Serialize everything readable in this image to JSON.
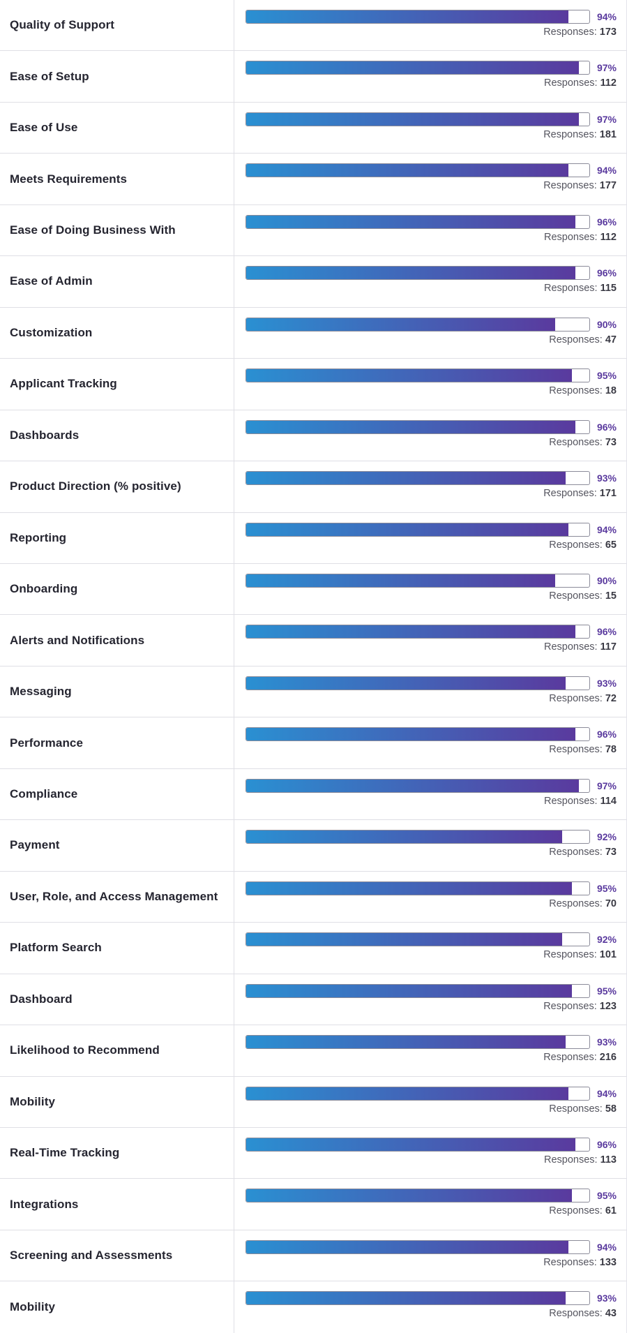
{
  "theme": {
    "bar_gradient_start": "#2a90d2",
    "bar_gradient_end": "#5a3a9e",
    "percent_color": "#5a3a9e"
  },
  "responses_label": "Responses: ",
  "ratings": [
    {
      "label": "Quality of Support",
      "percent_text": "94%",
      "percent_value": 94,
      "responses": "173"
    },
    {
      "label": "Ease of Setup",
      "percent_text": "97%",
      "percent_value": 97,
      "responses": "112"
    },
    {
      "label": "Ease of Use",
      "percent_text": "97%",
      "percent_value": 97,
      "responses": "181"
    },
    {
      "label": "Meets Requirements",
      "percent_text": "94%",
      "percent_value": 94,
      "responses": "177"
    },
    {
      "label": "Ease of Doing Business With",
      "percent_text": "96%",
      "percent_value": 96,
      "responses": "112"
    },
    {
      "label": "Ease of Admin",
      "percent_text": "96%",
      "percent_value": 96,
      "responses": "115"
    },
    {
      "label": "Customization",
      "percent_text": "90%",
      "percent_value": 90,
      "responses": "47"
    },
    {
      "label": "Applicant Tracking",
      "percent_text": "95%",
      "percent_value": 95,
      "responses": "18"
    },
    {
      "label": "Dashboards",
      "percent_text": "96%",
      "percent_value": 96,
      "responses": "73"
    },
    {
      "label": "Product Direction (% positive)",
      "percent_text": "93%",
      "percent_value": 93,
      "responses": "171"
    },
    {
      "label": "Reporting",
      "percent_text": "94%",
      "percent_value": 94,
      "responses": "65"
    },
    {
      "label": "Onboarding",
      "percent_text": "90%",
      "percent_value": 90,
      "responses": "15"
    },
    {
      "label": "Alerts and Notifications",
      "percent_text": "96%",
      "percent_value": 96,
      "responses": "117"
    },
    {
      "label": "Messaging",
      "percent_text": "93%",
      "percent_value": 93,
      "responses": "72"
    },
    {
      "label": "Performance",
      "percent_text": "96%",
      "percent_value": 96,
      "responses": "78"
    },
    {
      "label": "Compliance",
      "percent_text": "97%",
      "percent_value": 97,
      "responses": "114"
    },
    {
      "label": "Payment",
      "percent_text": "92%",
      "percent_value": 92,
      "responses": "73"
    },
    {
      "label": "User, Role, and Access Management",
      "percent_text": "95%",
      "percent_value": 95,
      "responses": "70"
    },
    {
      "label": "Platform Search",
      "percent_text": "92%",
      "percent_value": 92,
      "responses": "101"
    },
    {
      "label": "Dashboard",
      "percent_text": "95%",
      "percent_value": 95,
      "responses": "123"
    },
    {
      "label": "Likelihood to Recommend",
      "percent_text": "93%",
      "percent_value": 93,
      "responses": "216"
    },
    {
      "label": "Mobility",
      "percent_text": "94%",
      "percent_value": 94,
      "responses": "58"
    },
    {
      "label": "Real-Time Tracking",
      "percent_text": "96%",
      "percent_value": 96,
      "responses": "113"
    },
    {
      "label": "Integrations",
      "percent_text": "95%",
      "percent_value": 95,
      "responses": "61"
    },
    {
      "label": "Screening and Assessments",
      "percent_text": "94%",
      "percent_value": 94,
      "responses": "133"
    },
    {
      "label": "Mobility",
      "percent_text": "93%",
      "percent_value": 93,
      "responses": "43"
    }
  ]
}
